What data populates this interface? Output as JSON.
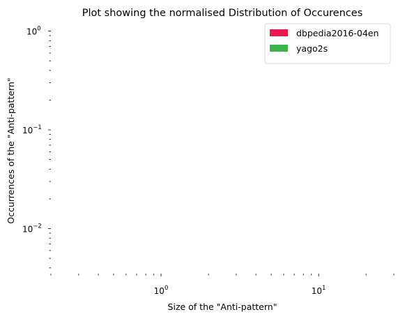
{
  "chart_data": {
    "type": "bar",
    "title": "Plot showing the normalised Distribution of Occurences",
    "xlabel": "Size of the \"Anti-pattern\"",
    "ylabel": "Occurrences of the \"Anti-pattern\"",
    "x_scale": "log",
    "y_scale": "log",
    "xlim": [
      0.2,
      30
    ],
    "ylim": [
      0.0035,
      1.15
    ],
    "x_major_ticks": [
      {
        "value": 1,
        "base": "10",
        "exp": "0"
      },
      {
        "value": 10,
        "base": "10",
        "exp": "1"
      }
    ],
    "y_major_ticks": [
      {
        "value": 1,
        "base": "10",
        "exp": "0"
      },
      {
        "value": 0.1,
        "base": "10",
        "exp": "−1"
      },
      {
        "value": 0.01,
        "base": "10",
        "exp": "−2"
      }
    ],
    "grid": false,
    "legend_position": "top-right",
    "series": [
      {
        "name": "dbpedia2016-04en",
        "color": "#e8194b",
        "values": []
      },
      {
        "name": "yago2s",
        "color": "#3cb44b",
        "values": []
      }
    ]
  }
}
